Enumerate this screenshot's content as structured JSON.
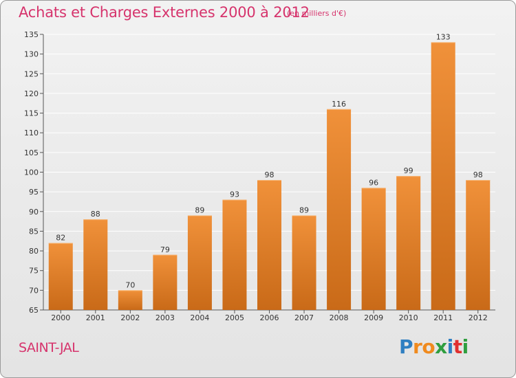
{
  "chart_data": {
    "type": "bar",
    "title": "Achats et Charges Externes 2000 à 2012",
    "subtitle": "(en milliers d'€)",
    "categories": [
      "2000",
      "2001",
      "2002",
      "2003",
      "2004",
      "2005",
      "2006",
      "2007",
      "2008",
      "2009",
      "2010",
      "2011",
      "2012"
    ],
    "values": [
      82,
      88,
      70,
      79,
      89,
      93,
      98,
      89,
      116,
      96,
      99,
      133,
      98
    ],
    "ylim": [
      65,
      135
    ],
    "yticks": [
      65,
      70,
      75,
      80,
      85,
      90,
      95,
      100,
      105,
      110,
      115,
      120,
      125,
      130,
      135
    ],
    "grid": true,
    "legend": "none",
    "bar_color": "#f0913a",
    "bar_color_dark": "#c96a18"
  },
  "place_name": "SAINT-JAL",
  "logo": {
    "letters": [
      "P",
      "r",
      "o",
      "x",
      "i",
      "t",
      "i"
    ],
    "colors": [
      "#2f7fc1",
      "#f08a1e",
      "#f08a1e",
      "#2f9e3f",
      "#2f7fc1",
      "#e03030",
      "#2f9e3f"
    ]
  },
  "colors": {
    "title": "#d6336c",
    "grid": "#ffffff",
    "axis": "#555555"
  }
}
